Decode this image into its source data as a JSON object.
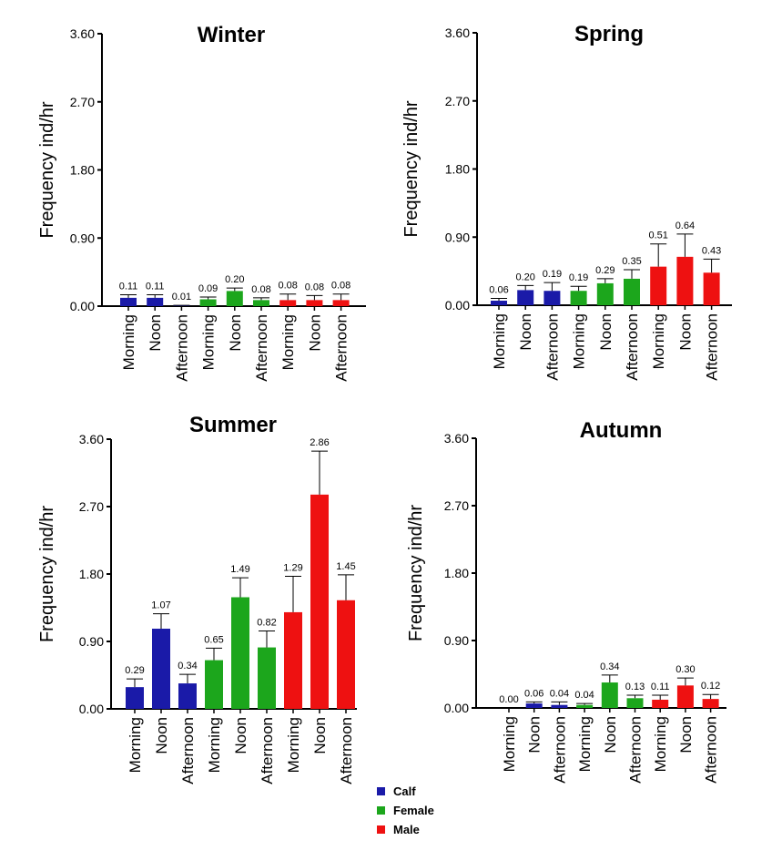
{
  "colors": {
    "Calf": "#1a1aa8",
    "Female": "#1ca61c",
    "Male": "#ee1111"
  },
  "legend": [
    {
      "label": "Calf",
      "color": "#1a1aa8"
    },
    {
      "label": "Female",
      "color": "#1ca61c"
    },
    {
      "label": "Male",
      "color": "#ee1111"
    }
  ],
  "chart_data": [
    {
      "type": "bar",
      "title": "Winter",
      "ylabel": "Frequency ind/hr",
      "ylim": [
        0,
        3.6
      ],
      "yticks": [
        "0.00",
        "0.90",
        "1.80",
        "2.70",
        "3.60"
      ],
      "categories": [
        "Morning",
        "Noon",
        "Afternoon",
        "Morning",
        "Noon",
        "Afternoon",
        "Morning",
        "Noon",
        "Afternoon"
      ],
      "groups": [
        "Calf",
        "Calf",
        "Calf",
        "Female",
        "Female",
        "Female",
        "Male",
        "Male",
        "Male"
      ],
      "values": [
        0.11,
        0.11,
        0.01,
        0.09,
        0.2,
        0.08,
        0.08,
        0.08,
        0.08
      ],
      "errors": [
        0.04,
        0.04,
        0.0,
        0.03,
        0.04,
        0.03,
        0.08,
        0.06,
        0.08
      ],
      "labels": [
        "0.11",
        "0.11",
        "0.01",
        "0.09",
        "0.20",
        "0.08",
        "0.08",
        "0.08",
        "0.08"
      ]
    },
    {
      "type": "bar",
      "title": "Spring",
      "ylabel": "Frequency ind/hr",
      "ylim": [
        0,
        3.6
      ],
      "yticks": [
        "0.00",
        "0.90",
        "1.80",
        "2.70",
        "3.60"
      ],
      "categories": [
        "Morning",
        "Noon",
        "Afternoon",
        "Morning",
        "Noon",
        "Afternoon",
        "Morning",
        "Noon",
        "Afternoon"
      ],
      "groups": [
        "Calf",
        "Calf",
        "Calf",
        "Female",
        "Female",
        "Female",
        "Male",
        "Male",
        "Male"
      ],
      "values": [
        0.06,
        0.2,
        0.19,
        0.19,
        0.29,
        0.35,
        0.51,
        0.64,
        0.43
      ],
      "errors": [
        0.03,
        0.06,
        0.11,
        0.06,
        0.06,
        0.12,
        0.3,
        0.3,
        0.18
      ],
      "labels": [
        "0.06",
        "0.20",
        "0.19",
        "0.19",
        "0.29",
        "0.35",
        "0.51",
        "0.64",
        "0.43"
      ]
    },
    {
      "type": "bar",
      "title": "Summer",
      "ylabel": "Frequency ind/hr",
      "ylim": [
        0,
        3.6
      ],
      "yticks": [
        "0.00",
        "0.90",
        "1.80",
        "2.70",
        "3.60"
      ],
      "categories": [
        "Morning",
        "Noon",
        "Afternoon",
        "Morning",
        "Noon",
        "Afternoon",
        "Morning",
        "Noon",
        "Afternoon"
      ],
      "groups": [
        "Calf",
        "Calf",
        "Calf",
        "Female",
        "Female",
        "Female",
        "Male",
        "Male",
        "Male"
      ],
      "values": [
        0.29,
        1.07,
        0.34,
        0.65,
        1.49,
        0.82,
        1.29,
        2.86,
        1.45
      ],
      "errors": [
        0.11,
        0.2,
        0.12,
        0.16,
        0.26,
        0.22,
        0.48,
        0.58,
        0.34
      ],
      "labels": [
        "0.29",
        "1.07",
        "0.34",
        "0.65",
        "1.49",
        "0.82",
        "1.29",
        "2.86",
        "1.45"
      ]
    },
    {
      "type": "bar",
      "title": "Autumn",
      "ylabel": "Frequency ind/hr",
      "ylim": [
        0,
        3.6
      ],
      "yticks": [
        "0.00",
        "0.90",
        "1.80",
        "2.70",
        "3.60"
      ],
      "categories": [
        "Morning",
        "Noon",
        "Afternoon",
        "Morning",
        "Noon",
        "Afternoon",
        "Morning",
        "Noon",
        "Afternoon"
      ],
      "groups": [
        "Calf",
        "Calf",
        "Calf",
        "Female",
        "Female",
        "Female",
        "Male",
        "Male",
        "Male"
      ],
      "values": [
        0.0,
        0.06,
        0.04,
        0.04,
        0.34,
        0.13,
        0.11,
        0.3,
        0.12
      ],
      "errors": [
        0.0,
        0.02,
        0.04,
        0.02,
        0.1,
        0.04,
        0.06,
        0.1,
        0.06
      ],
      "labels": [
        "0.00",
        "0.06",
        "0.04",
        "0.04",
        "0.34",
        "0.13",
        "0.11",
        "0.30",
        "0.12"
      ]
    }
  ]
}
